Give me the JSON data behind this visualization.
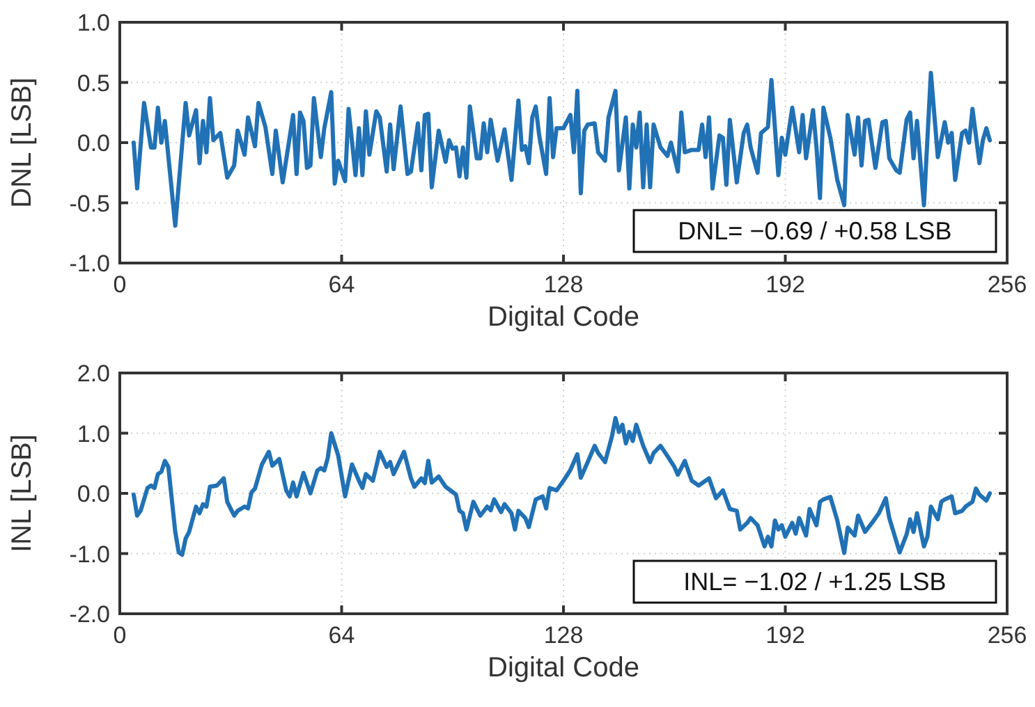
{
  "chart_data": [
    {
      "type": "line",
      "ylabel": "DNL [LSB]",
      "xlabel": "Digital Code",
      "grid": true,
      "xlim": [
        0,
        256
      ],
      "xticks": [
        0,
        64,
        128,
        192,
        256
      ],
      "ylim": [
        -1,
        1
      ],
      "yticks": [
        {
          "value": -1,
          "label": "-1.0"
        },
        {
          "value": -0.5,
          "label": "-0.5"
        },
        {
          "value": 0,
          "label": "0.0"
        },
        {
          "value": 0.5,
          "label": "0.5"
        },
        {
          "value": 1,
          "label": "1.0"
        }
      ],
      "annotations": [
        "DNL= −0.69 / +0.58 LSB"
      ],
      "x": [
        4,
        5,
        7,
        9,
        10,
        11,
        12,
        13,
        16,
        19,
        20,
        22,
        23,
        24,
        25,
        26,
        27,
        29,
        31,
        33,
        34,
        36,
        37,
        39,
        40,
        42,
        44,
        45,
        47,
        50,
        51,
        52,
        53,
        54,
        55,
        56,
        58,
        59,
        61,
        62,
        63,
        65,
        66,
        68,
        69,
        70,
        71,
        72,
        74,
        75,
        77,
        78,
        79,
        81,
        83,
        84,
        86,
        87,
        88,
        89,
        90,
        92,
        94,
        95,
        96,
        97,
        98,
        99,
        100,
        101,
        103,
        104,
        105,
        106,
        107,
        109,
        111,
        113,
        115,
        116,
        117,
        118,
        119,
        120,
        121,
        123,
        124,
        125,
        126,
        128,
        130,
        131,
        132,
        133,
        134,
        135,
        137,
        138,
        140,
        141,
        143,
        144,
        146,
        147,
        148,
        149,
        150,
        151,
        152,
        153,
        154,
        156,
        158,
        159,
        161,
        162,
        163,
        165,
        167,
        168,
        169,
        170,
        171,
        173,
        174,
        175,
        176,
        178,
        180,
        181,
        182,
        184,
        185,
        187,
        188,
        190,
        191,
        192,
        194,
        196,
        197,
        198,
        200,
        201,
        202,
        203,
        205,
        207,
        209,
        210,
        212,
        213,
        214,
        215,
        216,
        218,
        220,
        221,
        222,
        224,
        225,
        227,
        228,
        229,
        230,
        232,
        234,
        236,
        238,
        239,
        240,
        241,
        243,
        244,
        245,
        246,
        248,
        249,
        250,
        251
      ],
      "series": [
        {
          "color": "#2171b5",
          "values": [
            0.0,
            -0.38,
            0.33,
            -0.04,
            -0.04,
            0.29,
            0.0,
            0.18,
            -0.69,
            0.33,
            0.06,
            0.27,
            -0.17,
            0.18,
            -0.08,
            0.37,
            0.02,
            0.08,
            -0.29,
            -0.19,
            0.1,
            -0.1,
            0.21,
            -0.03,
            0.33,
            0.13,
            -0.26,
            0.1,
            -0.33,
            0.23,
            -0.26,
            0.25,
            0.18,
            -0.21,
            -0.19,
            0.37,
            -0.12,
            0.12,
            0.42,
            -0.34,
            -0.15,
            -0.32,
            0.28,
            -0.27,
            0.12,
            -0.27,
            0.26,
            -0.1,
            0.26,
            0.21,
            -0.24,
            0.15,
            -0.22,
            0.3,
            -0.26,
            -0.24,
            0.16,
            -0.23,
            0.23,
            0.24,
            -0.37,
            0.1,
            -0.16,
            0.02,
            -0.05,
            -0.04,
            -0.28,
            -0.04,
            -0.29,
            0.3,
            -0.13,
            -0.13,
            0.16,
            -0.08,
            0.19,
            -0.15,
            0.11,
            -0.31,
            0.35,
            -0.06,
            -0.03,
            -0.17,
            0.21,
            0.3,
            0.06,
            -0.26,
            0.37,
            -0.12,
            0.12,
            0.12,
            0.23,
            -0.08,
            0.43,
            -0.42,
            0.1,
            0.15,
            0.16,
            -0.08,
            -0.15,
            0.21,
            0.43,
            -0.23,
            0.21,
            -0.38,
            0.15,
            -0.04,
            0.25,
            -0.37,
            0.15,
            -0.37,
            0.15,
            -0.04,
            -0.11,
            0.0,
            -0.24,
            0.25,
            -0.08,
            -0.06,
            -0.06,
            0.15,
            -0.12,
            0.21,
            -0.38,
            0.06,
            0.04,
            -0.35,
            0.19,
            -0.33,
            0.08,
            0.15,
            -0.04,
            -0.25,
            0.08,
            0.13,
            0.52,
            -0.27,
            0.04,
            -0.1,
            0.29,
            -0.08,
            0.23,
            -0.13,
            0.27,
            -0.04,
            -0.46,
            0.29,
            0.04,
            -0.31,
            -0.52,
            0.23,
            -0.1,
            0.21,
            -0.19,
            0.18,
            0.19,
            -0.21,
            0.17,
            0.18,
            -0.13,
            -0.23,
            -0.25,
            0.19,
            0.25,
            -0.13,
            0.18,
            -0.52,
            0.58,
            -0.12,
            0.17,
            0.0,
            0.08,
            -0.31,
            0.08,
            0.1,
            0.0,
            0.28,
            -0.17,
            0.02,
            0.12,
            0.02
          ]
        }
      ]
    },
    {
      "type": "line",
      "ylabel": "INL [LSB]",
      "xlabel": "Digital Code",
      "grid": true,
      "xlim": [
        0,
        256
      ],
      "xticks": [
        0,
        64,
        128,
        192,
        256
      ],
      "ylim": [
        -2,
        2
      ],
      "yticks": [
        {
          "value": -2,
          "label": "-2.0"
        },
        {
          "value": -1,
          "label": "-1.0"
        },
        {
          "value": 0,
          "label": "0.0"
        },
        {
          "value": 1,
          "label": "1.0"
        },
        {
          "value": 2,
          "label": "2.0"
        }
      ],
      "annotations": [
        "INL= −1.02 / +1.25 LSB"
      ],
      "x": [
        4,
        5,
        6,
        8,
        9,
        10,
        11,
        12,
        13,
        14,
        16,
        17,
        18,
        19,
        20,
        22,
        23,
        24,
        25,
        26,
        28,
        30,
        31,
        33,
        34,
        36,
        37,
        38,
        39,
        41,
        43,
        44,
        46,
        48,
        49,
        50,
        51,
        53,
        55,
        57,
        58,
        59,
        60,
        61,
        63,
        65,
        67,
        69,
        70,
        71,
        73,
        75,
        77,
        78,
        79,
        82,
        84,
        85,
        87,
        88,
        89,
        90,
        92,
        94,
        97,
        98,
        99,
        100,
        102,
        104,
        106,
        107,
        108,
        110,
        111,
        113,
        114,
        115,
        117,
        118,
        120,
        122,
        123,
        124,
        126,
        128,
        130,
        132,
        133,
        135,
        137,
        138,
        140,
        142,
        143,
        144,
        145,
        146,
        147,
        148,
        149,
        151,
        153,
        154,
        156,
        158,
        160,
        161,
        163,
        165,
        167,
        169,
        170,
        172,
        174,
        176,
        178,
        179,
        181,
        182,
        184,
        186,
        187,
        188,
        189,
        190,
        191,
        192,
        194,
        195,
        196,
        198,
        199,
        201,
        202,
        203,
        205,
        207,
        209,
        210,
        212,
        213,
        215,
        217,
        219,
        221,
        222,
        225,
        227,
        228,
        229,
        230,
        232,
        233,
        234,
        236,
        237,
        238,
        240,
        241,
        243,
        244,
        246,
        247,
        248,
        250,
        251
      ],
      "series": [
        {
          "color": "#2171b5",
          "values": [
            -0.02,
            -0.37,
            -0.29,
            0.09,
            0.13,
            0.09,
            0.32,
            0.36,
            0.54,
            0.44,
            -0.64,
            -0.98,
            -1.02,
            -0.75,
            -0.64,
            -0.22,
            -0.33,
            -0.18,
            -0.22,
            0.11,
            0.13,
            0.25,
            -0.14,
            -0.37,
            -0.29,
            -0.22,
            -0.25,
            0.02,
            0.08,
            0.48,
            0.69,
            0.46,
            0.57,
            0.05,
            -0.05,
            0.18,
            -0.05,
            0.34,
            0.0,
            0.38,
            0.42,
            0.38,
            0.59,
            1.0,
            0.63,
            -0.05,
            0.48,
            0.21,
            0.09,
            0.32,
            0.21,
            0.69,
            0.44,
            0.52,
            0.32,
            0.69,
            0.25,
            0.11,
            0.25,
            0.17,
            0.54,
            0.18,
            0.28,
            0.11,
            -0.02,
            -0.29,
            -0.33,
            -0.6,
            -0.14,
            -0.37,
            -0.22,
            -0.28,
            -0.1,
            -0.31,
            -0.18,
            -0.33,
            -0.6,
            -0.29,
            -0.41,
            -0.56,
            -0.1,
            -0.05,
            -0.25,
            0.09,
            0.05,
            0.21,
            0.39,
            0.65,
            0.26,
            0.52,
            0.79,
            0.67,
            0.52,
            0.95,
            1.25,
            1.02,
            1.14,
            0.83,
            1.02,
            0.87,
            1.14,
            0.79,
            0.52,
            0.67,
            0.79,
            0.62,
            0.44,
            0.31,
            0.54,
            0.21,
            0.13,
            0.21,
            0.25,
            -0.08,
            0.05,
            -0.26,
            -0.29,
            -0.6,
            -0.49,
            -0.41,
            -0.53,
            -0.88,
            -0.72,
            -0.88,
            -0.45,
            -0.6,
            -0.53,
            -0.72,
            -0.49,
            -0.67,
            -0.41,
            -0.7,
            -0.26,
            -0.53,
            -0.14,
            -0.1,
            -0.06,
            -0.45,
            -0.99,
            -0.57,
            -0.7,
            -0.37,
            -0.64,
            -0.49,
            -0.33,
            -0.08,
            -0.41,
            -0.98,
            -0.68,
            -0.43,
            -0.64,
            -0.33,
            -0.88,
            -0.72,
            -0.22,
            -0.43,
            -0.14,
            -0.1,
            -0.05,
            -0.33,
            -0.29,
            -0.22,
            -0.14,
            0.08,
            -0.02,
            -0.12,
            0.0
          ]
        }
      ]
    }
  ]
}
